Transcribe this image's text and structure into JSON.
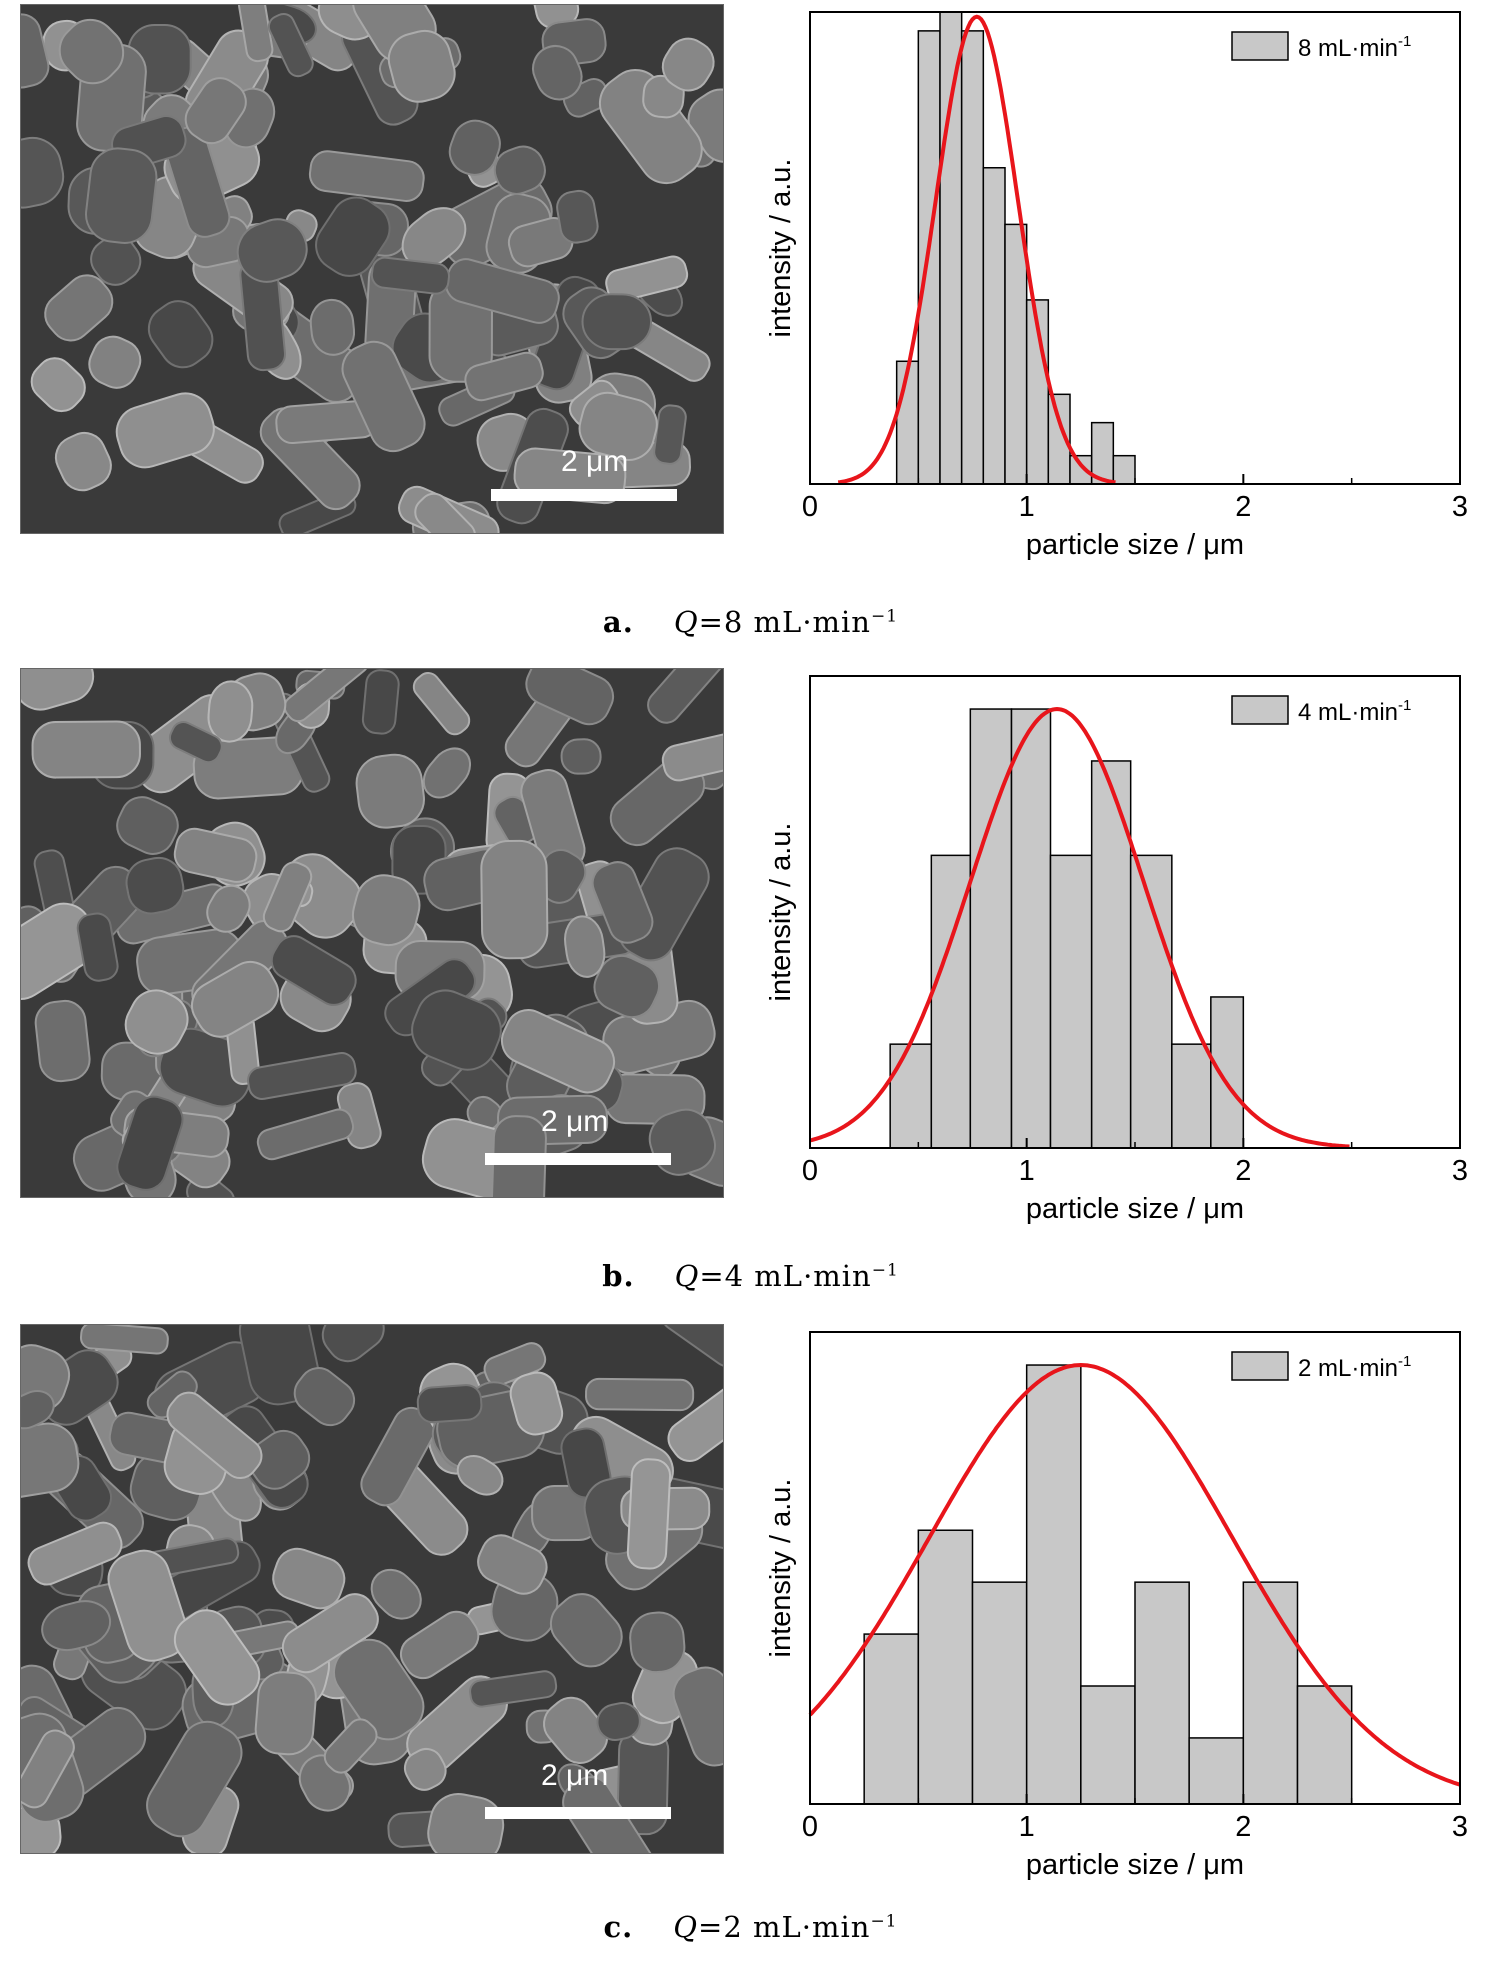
{
  "panels": [
    {
      "id": "a",
      "scale_label": "2 μm",
      "caption": {
        "letter": "a.",
        "q": "Q",
        "value": "=8 mL·min",
        "sup": "−1"
      },
      "chart_data": {
        "type": "bar",
        "xlabel": "particle size / μm",
        "ylabel": "intensity / a.u.",
        "xlim": [
          0,
          3
        ],
        "ylim": [
          0,
          1.0
        ],
        "xticks": [
          "0",
          "1",
          "2",
          "3"
        ],
        "legend": {
          "label": "8 mL·min",
          "sup": "-1",
          "placement": "top-right"
        },
        "bins": [
          {
            "x0": 0.4,
            "x1": 0.5,
            "value": 0.26
          },
          {
            "x0": 0.5,
            "x1": 0.6,
            "value": 0.96
          },
          {
            "x0": 0.6,
            "x1": 0.7,
            "value": 1.0
          },
          {
            "x0": 0.7,
            "x1": 0.8,
            "value": 0.96
          },
          {
            "x0": 0.8,
            "x1": 0.9,
            "value": 0.67
          },
          {
            "x0": 0.9,
            "x1": 1.0,
            "value": 0.55
          },
          {
            "x0": 1.0,
            "x1": 1.1,
            "value": 0.39
          },
          {
            "x0": 1.1,
            "x1": 1.2,
            "value": 0.19
          },
          {
            "x0": 1.2,
            "x1": 1.3,
            "value": 0.06
          },
          {
            "x0": 1.3,
            "x1": 1.4,
            "value": 0.13
          },
          {
            "x0": 1.4,
            "x1": 1.5,
            "value": 0.06
          }
        ],
        "fit": {
          "type": "gaussian",
          "mean": 0.77,
          "sigma": 0.19,
          "peak": 0.99
        },
        "colors": {
          "bar": "#c8c8c8",
          "fit": "#e8151b"
        }
      }
    },
    {
      "id": "b",
      "scale_label": "2 μm",
      "caption": {
        "letter": "b.",
        "q": "Q",
        "value": "=4 mL·min",
        "sup": "−1"
      },
      "chart_data": {
        "type": "bar",
        "xlabel": "particle size / μm",
        "ylabel": "intensity / a.u.",
        "xlim": [
          0,
          3
        ],
        "ylim": [
          0,
          1.0
        ],
        "xticks": [
          "0",
          "1",
          "2",
          "3"
        ],
        "legend": {
          "label": "4 mL·min",
          "sup": "-1",
          "placement": "top-right"
        },
        "bins": [
          {
            "x0": 0.37,
            "x1": 0.56,
            "value": 0.22
          },
          {
            "x0": 0.56,
            "x1": 0.74,
            "value": 0.62
          },
          {
            "x0": 0.74,
            "x1": 0.93,
            "value": 0.93
          },
          {
            "x0": 0.93,
            "x1": 1.11,
            "value": 0.93
          },
          {
            "x0": 1.11,
            "x1": 1.3,
            "value": 0.62
          },
          {
            "x0": 1.3,
            "x1": 1.48,
            "value": 0.82
          },
          {
            "x0": 1.48,
            "x1": 1.67,
            "value": 0.62
          },
          {
            "x0": 1.67,
            "x1": 1.85,
            "value": 0.22
          },
          {
            "x0": 1.85,
            "x1": 2.0,
            "value": 0.32
          }
        ],
        "fit": {
          "type": "gaussian",
          "mean": 1.14,
          "sigma": 0.4,
          "peak": 0.93
        },
        "colors": {
          "bar": "#c8c8c8",
          "fit": "#e8151b"
        }
      }
    },
    {
      "id": "c",
      "scale_label": "2 μm",
      "caption": {
        "letter": "c.",
        "q": "Q",
        "value": "=2 mL·min",
        "sup": "−1"
      },
      "chart_data": {
        "type": "bar",
        "xlabel": "particle size / μm",
        "ylabel": "intensity / a.u.",
        "xlim": [
          0,
          3
        ],
        "ylim": [
          0,
          1.0
        ],
        "xticks": [
          "0",
          "1",
          "2",
          "3"
        ],
        "legend": {
          "label": "2 mL·min",
          "sup": "-1",
          "placement": "top-right"
        },
        "bins": [
          {
            "x0": 0.25,
            "x1": 0.5,
            "value": 0.36
          },
          {
            "x0": 0.5,
            "x1": 0.75,
            "value": 0.58
          },
          {
            "x0": 0.75,
            "x1": 1.0,
            "value": 0.47
          },
          {
            "x0": 1.0,
            "x1": 1.25,
            "value": 0.93
          },
          {
            "x0": 1.25,
            "x1": 1.5,
            "value": 0.25
          },
          {
            "x0": 1.5,
            "x1": 1.75,
            "value": 0.47
          },
          {
            "x0": 1.75,
            "x1": 2.0,
            "value": 0.14
          },
          {
            "x0": 2.0,
            "x1": 2.25,
            "value": 0.47
          },
          {
            "x0": 2.25,
            "x1": 2.5,
            "value": 0.25
          }
        ],
        "fit": {
          "type": "gaussian",
          "mean": 1.25,
          "sigma": 0.7,
          "peak": 0.93
        },
        "colors": {
          "bar": "#c8c8c8",
          "fit": "#e8151b"
        }
      }
    }
  ]
}
